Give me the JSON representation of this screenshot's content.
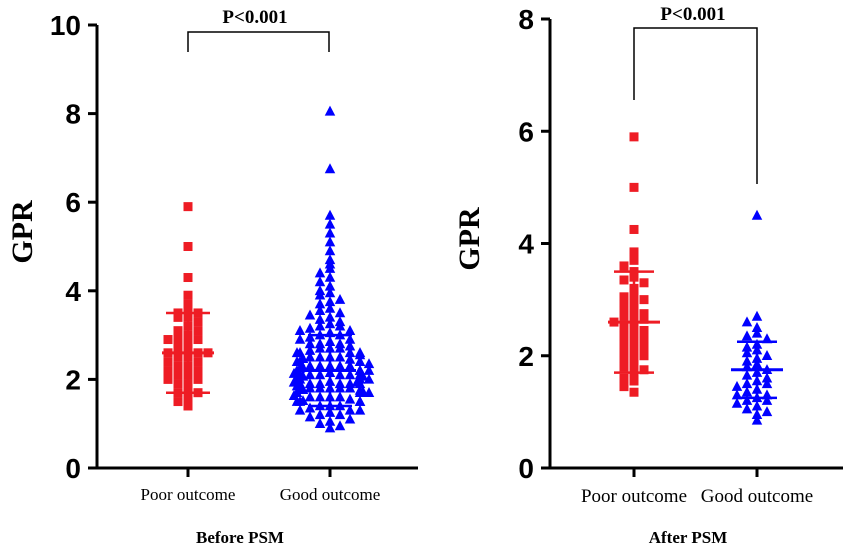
{
  "chart_data": [
    {
      "type": "scatter",
      "subtitle": "Before PSM",
      "ylabel": "GPR",
      "ylim": [
        0,
        10
      ],
      "yticks": [
        "0",
        "2",
        "4",
        "6",
        "8",
        "10"
      ],
      "categories": [
        "Poor outcome",
        "Good outcome"
      ],
      "significance": "P<0.001",
      "series": [
        {
          "name": "Poor outcome",
          "color": "#ee1c24",
          "marker": "square",
          "mean": 2.6,
          "sd": 0.9,
          "values": [
            5.9,
            5.0,
            4.3,
            3.9,
            3.7,
            3.6,
            3.5,
            3.5,
            3.4,
            3.4,
            3.3,
            3.2,
            3.1,
            3.1,
            3.0,
            3.0,
            2.9,
            2.9,
            2.8,
            2.8,
            2.7,
            2.7,
            2.6,
            2.6,
            2.6,
            2.5,
            2.5,
            2.4,
            2.4,
            2.3,
            2.3,
            2.2,
            2.2,
            2.1,
            2.1,
            2.0,
            2.0,
            1.9,
            1.9,
            1.8,
            1.7,
            1.7,
            1.6,
            1.5,
            1.4
          ]
        },
        {
          "name": "Good outcome",
          "color": "#0000ff",
          "marker": "triangle",
          "mean": 2.2,
          "sd": 0.8,
          "values": [
            8.05,
            6.75,
            5.7,
            5.5,
            5.3,
            5.1,
            4.9,
            4.7,
            4.6,
            4.5,
            4.4,
            4.3,
            4.2,
            4.1,
            4.0,
            3.95,
            3.9,
            3.8,
            3.75,
            3.7,
            3.6,
            3.55,
            3.5,
            3.45,
            3.4,
            3.35,
            3.3,
            3.25,
            3.2,
            3.2,
            3.15,
            3.1,
            3.1,
            3.05,
            3.0,
            3.0,
            2.95,
            2.9,
            2.9,
            2.85,
            2.8,
            2.8,
            2.8,
            2.75,
            2.7,
            2.7,
            2.7,
            2.65,
            2.6,
            2.6,
            2.6,
            2.6,
            2.55,
            2.5,
            2.5,
            2.5,
            2.5,
            2.45,
            2.4,
            2.4,
            2.4,
            2.4,
            2.4,
            2.35,
            2.3,
            2.3,
            2.3,
            2.3,
            2.3,
            2.25,
            2.2,
            2.2,
            2.2,
            2.2,
            2.2,
            2.2,
            2.15,
            2.1,
            2.1,
            2.1,
            2.1,
            2.1,
            2.1,
            2.05,
            2.0,
            2.0,
            2.0,
            2.0,
            2.0,
            2.0,
            2.0,
            1.95,
            1.9,
            1.9,
            1.9,
            1.9,
            1.9,
            1.9,
            1.85,
            1.8,
            1.8,
            1.8,
            1.8,
            1.8,
            1.8,
            1.75,
            1.7,
            1.7,
            1.7,
            1.7,
            1.7,
            1.65,
            1.6,
            1.6,
            1.6,
            1.6,
            1.55,
            1.5,
            1.5,
            1.5,
            1.5,
            1.45,
            1.4,
            1.4,
            1.4,
            1.35,
            1.3,
            1.3,
            1.3,
            1.25,
            1.2,
            1.2,
            1.15,
            1.1,
            1.05,
            1.0,
            0.95,
            0.9
          ]
        }
      ]
    },
    {
      "type": "scatter",
      "subtitle": "After PSM",
      "ylabel": "GPR",
      "ylim": [
        0,
        8
      ],
      "yticks": [
        "0",
        "2",
        "4",
        "6",
        "8"
      ],
      "categories": [
        "Poor outcome",
        "Good outcome"
      ],
      "significance": "P<0.001",
      "series": [
        {
          "name": "Poor outcome",
          "color": "#ee1c24",
          "marker": "square",
          "mean": 2.6,
          "sd": 0.9,
          "values": [
            5.9,
            5.0,
            4.25,
            3.85,
            3.75,
            3.7,
            3.6,
            3.5,
            3.4,
            3.35,
            3.3,
            3.2,
            3.1,
            3.05,
            3.0,
            2.95,
            2.9,
            2.85,
            2.8,
            2.75,
            2.7,
            2.7,
            2.65,
            2.6,
            2.55,
            2.5,
            2.45,
            2.4,
            2.35,
            2.3,
            2.25,
            2.2,
            2.15,
            2.1,
            2.05,
            2.0,
            1.95,
            1.9,
            1.85,
            1.8,
            1.75,
            1.7,
            1.6,
            1.55,
            1.45,
            1.35
          ]
        },
        {
          "name": "Good outcome",
          "color": "#0000ff",
          "marker": "triangle",
          "mean": 1.75,
          "sd": 0.5,
          "values": [
            4.5,
            2.7,
            2.6,
            2.5,
            2.4,
            2.35,
            2.3,
            2.2,
            2.15,
            2.1,
            2.05,
            2.0,
            1.95,
            1.9,
            1.85,
            1.8,
            1.75,
            1.7,
            1.65,
            1.6,
            1.55,
            1.5,
            1.5,
            1.45,
            1.4,
            1.35,
            1.3,
            1.3,
            1.25,
            1.2,
            1.2,
            1.15,
            1.1,
            1.05,
            1.0,
            0.95,
            0.85
          ]
        }
      ]
    }
  ]
}
